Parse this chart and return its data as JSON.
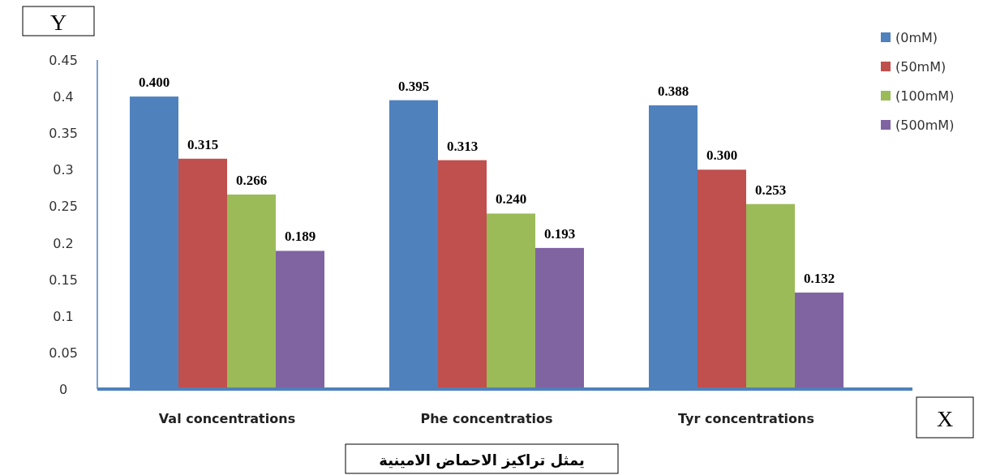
{
  "chart_data": {
    "type": "bar",
    "xlabel": "X",
    "ylabel": "Y",
    "categories": [
      "Val concentrations",
      "Phe concentratios",
      "Tyr concentrations"
    ],
    "series": [
      {
        "name": "(0mM)",
        "color": "#4f81bd",
        "values": [
          0.4,
          0.395,
          0.388
        ],
        "value_labels": [
          "0.400",
          "0.395",
          "0.388"
        ]
      },
      {
        "name": "(50mM)",
        "color": "#c0504d",
        "values": [
          0.315,
          0.313,
          0.3
        ],
        "value_labels": [
          "0.315",
          "0.313",
          "0.300"
        ]
      },
      {
        "name": "(100mM)",
        "color": "#9bbb59",
        "values": [
          0.266,
          0.24,
          0.253
        ],
        "value_labels": [
          "0.266",
          "0.240",
          "0.253"
        ]
      },
      {
        "name": "(500mM)",
        "color": "#8064a2",
        "values": [
          0.189,
          0.193,
          0.132
        ],
        "value_labels": [
          "0.189",
          "0.193",
          "0.132"
        ]
      }
    ],
    "ylim": [
      0,
      0.45
    ],
    "yticks": [
      0,
      0.05,
      0.1,
      0.15,
      0.2,
      0.25,
      0.3,
      0.35,
      0.4,
      0.45
    ],
    "legend": "top right",
    "grid": false,
    "annotations": [
      "يمثل تراكيز الاحماض الامينية"
    ]
  }
}
